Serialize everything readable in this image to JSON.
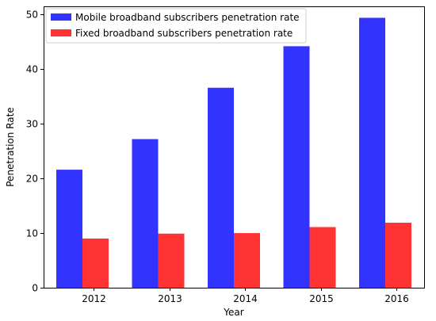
{
  "chart_data": {
    "type": "bar",
    "title": "",
    "xlabel": "Year",
    "ylabel": "Penetration Rate",
    "categories": [
      "2012",
      "2013",
      "2014",
      "2015",
      "2016"
    ],
    "series": [
      {
        "name": "Mobile broadband subscribers penetration rate",
        "color": "#3333ff",
        "values": [
          21.6,
          27.2,
          36.6,
          44.2,
          49.4
        ]
      },
      {
        "name": "Fixed broadband subscribers penetration rate",
        "color": "#ff3333",
        "values": [
          9.0,
          9.9,
          10.0,
          11.1,
          11.9
        ]
      }
    ],
    "ylim": [
      0,
      51.5
    ],
    "yticks": [
      0,
      10,
      20,
      30,
      40,
      50
    ],
    "grid": false,
    "legend_position": "top-left"
  }
}
